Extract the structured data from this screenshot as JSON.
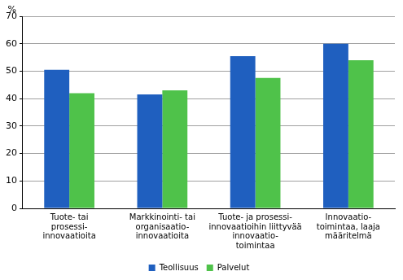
{
  "chart_data": {
    "type": "bar",
    "ylabel": "%",
    "categories": [
      [
        "Tuote- tai",
        "prosessi-",
        "innovaatioita"
      ],
      [
        "Markkinointi- tai",
        "organisaatio-",
        "innovaatioita"
      ],
      [
        "Tuote- ja prosessi-",
        "innovaatioihin liittyvää",
        "innovaatio-",
        "toimintaa"
      ],
      [
        "Innovaatio-",
        "toimintaa, laaja",
        "määritelmä"
      ]
    ],
    "series": [
      {
        "name": "Teollisuus",
        "color": "#1f5fbf",
        "values": [
          50.5,
          41.5,
          55.5,
          60
        ]
      },
      {
        "name": "Palvelut",
        "color": "#4fc24a",
        "values": [
          42,
          43,
          47.5,
          54
        ]
      }
    ],
    "ylim": [
      0,
      70
    ],
    "yticks": [
      0,
      10,
      20,
      30,
      40,
      50,
      60,
      70
    ],
    "grid": true,
    "legend": "bottom"
  }
}
